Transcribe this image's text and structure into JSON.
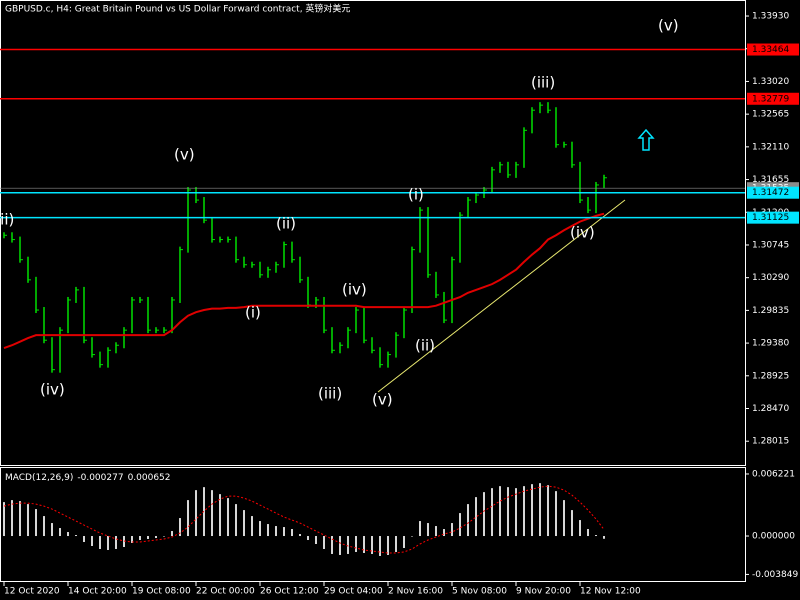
{
  "chart_data": [
    {
      "type": "ohlc",
      "title": "GBPUSD.c, H4:  Great Britain Pound vs US Dollar Forward contract, 英镑对美元",
      "categories": [
        "12 Oct 2020",
        null,
        null,
        null,
        null,
        null,
        null,
        null,
        "14 Oct 20:00",
        null,
        null,
        null,
        null,
        null,
        null,
        null,
        "19 Oct 08:00",
        null,
        null,
        null,
        null,
        null,
        null,
        null,
        "22 Oct 00:00",
        null,
        null,
        null,
        null,
        null,
        null,
        null,
        "26 Oct 12:00",
        null,
        null,
        null,
        null,
        null,
        null,
        null,
        "29 Oct 04:00",
        null,
        null,
        null,
        null,
        null,
        null,
        null,
        "2 Nov 16:00",
        null,
        null,
        null,
        null,
        null,
        null,
        null,
        "5 Nov 08:00",
        null,
        null,
        null,
        null,
        null,
        null,
        null,
        "9 Nov 20:00",
        null,
        null,
        null,
        null,
        null,
        null,
        null,
        "12 Nov 12:00",
        null,
        null,
        null
      ],
      "color": "#00e000",
      "values": [
        1.3088,
        1.3082,
        1.3054,
        1.3026,
        1.2984,
        1.2942,
        1.2901,
        1.2956,
        1.2998,
        1.3012,
        1.2942,
        1.2922,
        1.2908,
        1.2928,
        1.2935,
        1.2956,
        1.2998,
        1.2998,
        1.2956,
        1.2956,
        1.2956,
        1.2998,
        1.3068,
        1.3151,
        1.3137,
        1.3109,
        1.3082,
        1.3082,
        1.3082,
        1.3054,
        1.3047,
        1.3047,
        1.3033,
        1.304,
        1.3047,
        1.3075,
        1.3054,
        1.3026,
        1.2991,
        1.2998,
        1.2956,
        1.2928,
        1.2935,
        1.2956,
        1.2984,
        1.2942,
        1.2928,
        1.2908,
        1.2922,
        1.2949,
        1.2984,
        1.3068,
        1.3123,
        1.3033,
        1.3005,
        1.297,
        1.3054,
        1.3116,
        1.3137,
        1.3144,
        1.3151,
        1.3179,
        1.3186,
        1.3172,
        1.3186,
        1.3234,
        1.3262,
        1.3269,
        1.3262,
        1.3214,
        1.3214,
        1.3186,
        1.3137,
        1.3123,
        1.3158,
        1.3168
      ],
      "moving_average": {
        "color": "#e00000",
        "values": [
          1.2931,
          1.2935,
          1.294,
          1.2945,
          1.2949,
          1.2949,
          1.2949,
          1.2949,
          1.2949,
          1.2949,
          1.2949,
          1.2949,
          1.2949,
          1.2949,
          1.2949,
          1.2949,
          1.2949,
          1.2949,
          1.2949,
          1.2949,
          1.2949,
          1.2956,
          1.2967,
          1.2976,
          1.2981,
          1.2984,
          1.2986,
          1.2986,
          1.2987,
          1.2987,
          1.2988,
          1.299,
          1.299,
          1.299,
          1.299,
          1.299,
          1.299,
          1.299,
          1.299,
          1.299,
          1.299,
          1.299,
          1.299,
          1.299,
          1.299,
          1.2988,
          1.2988,
          1.2988,
          1.2988,
          1.2988,
          1.2988,
          1.2988,
          1.2988,
          1.2988,
          1.299,
          1.2994,
          1.2998,
          1.3002,
          1.3008,
          1.3012,
          1.3016,
          1.302,
          1.3026,
          1.3033,
          1.304,
          1.3051,
          1.3061,
          1.307,
          1.3082,
          1.3088,
          1.3095,
          1.3101,
          1.3107,
          1.3111,
          1.3115,
          1.3118
        ]
      },
      "ylim": [
        1.27684,
        1.34153
      ],
      "yticks": [
        {
          "value": 1.3393,
          "label": "1.33930"
        },
        1.33475,
        {
          "value": 1.3302,
          "label": "1.33020"
        },
        1.32565,
        {
          "value": 1.3211,
          "label": "1.32110"
        },
        1.31655,
        {
          "value": 1.312,
          "label": "1.31200"
        },
        1.30745,
        {
          "value": 1.3029,
          "label": "1.30290"
        },
        1.29835,
        {
          "value": 1.2938,
          "label": "1.29380"
        },
        1.28925,
        {
          "value": 1.2847,
          "label": "1.28470"
        },
        1.28015
      ],
      "levels": [
        {
          "value": 1.33464,
          "color": "#ff0000"
        },
        {
          "value": 1.32779,
          "color": "#ff0000"
        },
        {
          "value": 1.31472,
          "color": "#00e5ff"
        },
        {
          "value": 1.31125,
          "color": "#00e5ff"
        }
      ],
      "bid": {
        "value": 1.31535,
        "color": "#8c8c8c"
      },
      "annotations": [
        "iii)",
        "(iv)",
        "(v)",
        "(ii)",
        "(i)",
        "(iv)",
        "(iii)",
        "(v)",
        "(i)",
        "(ii)",
        "(iii)",
        "(iv)",
        "(v)"
      ]
    },
    {
      "type": "macd",
      "title": "MACD(12,26,9)",
      "series": [
        {
          "color": "#d8d8d8",
          "values": [
            0.0034,
            0.0036,
            0.0035,
            0.0032,
            0.0027,
            0.002,
            0.0013,
            0.0008,
            0.0004,
            0.0001,
            -0.0006,
            -0.001,
            -0.0013,
            -0.0014,
            -0.0013,
            -0.0011,
            -0.0007,
            -0.0004,
            -0.0003,
            -0.0002,
            0,
            0.0005,
            0.0018,
            0.0036,
            0.0046,
            0.0049,
            0.0046,
            0.0042,
            0.0038,
            0.0032,
            0.0026,
            0.002,
            0.0015,
            0.0012,
            0.001,
            0.0009,
            0.0007,
            0.0002,
            -0.0004,
            -0.0008,
            -0.0013,
            -0.0018,
            -0.0019,
            -0.0018,
            -0.0016,
            -0.0017,
            -0.0018,
            -0.002,
            -0.0019,
            -0.0016,
            -0.0012,
            0,
            0.0015,
            0.0013,
            0.001,
            0.0007,
            0.0013,
            0.0023,
            0.0032,
            0.0039,
            0.0044,
            0.0048,
            0.005,
            0.0049,
            0.0048,
            0.005,
            0.0052,
            0.0053,
            0.0051,
            0.0045,
            0.0036,
            0.0026,
            0.0016,
            0.0007,
            0.0001,
            -0.000277
          ]
        },
        {
          "color": "#ff0000",
          "values": [
            0.003,
            0.0032,
            0.0033,
            0.0033,
            0.0032,
            0.003,
            0.0027,
            0.0023,
            0.0019,
            0.0015,
            0.0011,
            0.0007,
            0.0003,
            0,
            -0.0003,
            -0.0005,
            -0.0006,
            -0.0006,
            -0.0005,
            -0.0004,
            -0.0003,
            -0.0001,
            0.0003,
            0.0009,
            0.0017,
            0.0025,
            0.0032,
            0.0037,
            0.004,
            0.004,
            0.0038,
            0.0035,
            0.0031,
            0.0027,
            0.0023,
            0.0019,
            0.0016,
            0.0013,
            0.0009,
            0.0005,
            0.0001,
            -0.0003,
            -0.0007,
            -0.001,
            -0.0012,
            -0.0014,
            -0.0015,
            -0.0016,
            -0.0017,
            -0.0017,
            -0.0016,
            -0.0013,
            -0.0008,
            -0.0004,
            -0.0001,
            0.0002,
            0.0004,
            0.0008,
            0.0013,
            0.0019,
            0.0025,
            0.003,
            0.0035,
            0.0039,
            0.0042,
            0.0045,
            0.0047,
            0.0049,
            0.005,
            0.0049,
            0.0046,
            0.0041,
            0.0034,
            0.0026,
            0.0017,
            0.000652
          ]
        }
      ],
      "ylim": [
        -0.00461,
        0.00682
      ],
      "yticks": [
        0.006221,
        {
          "value": 0,
          "label": "0.000000"
        },
        -0.003849
      ]
    }
  ]
}
